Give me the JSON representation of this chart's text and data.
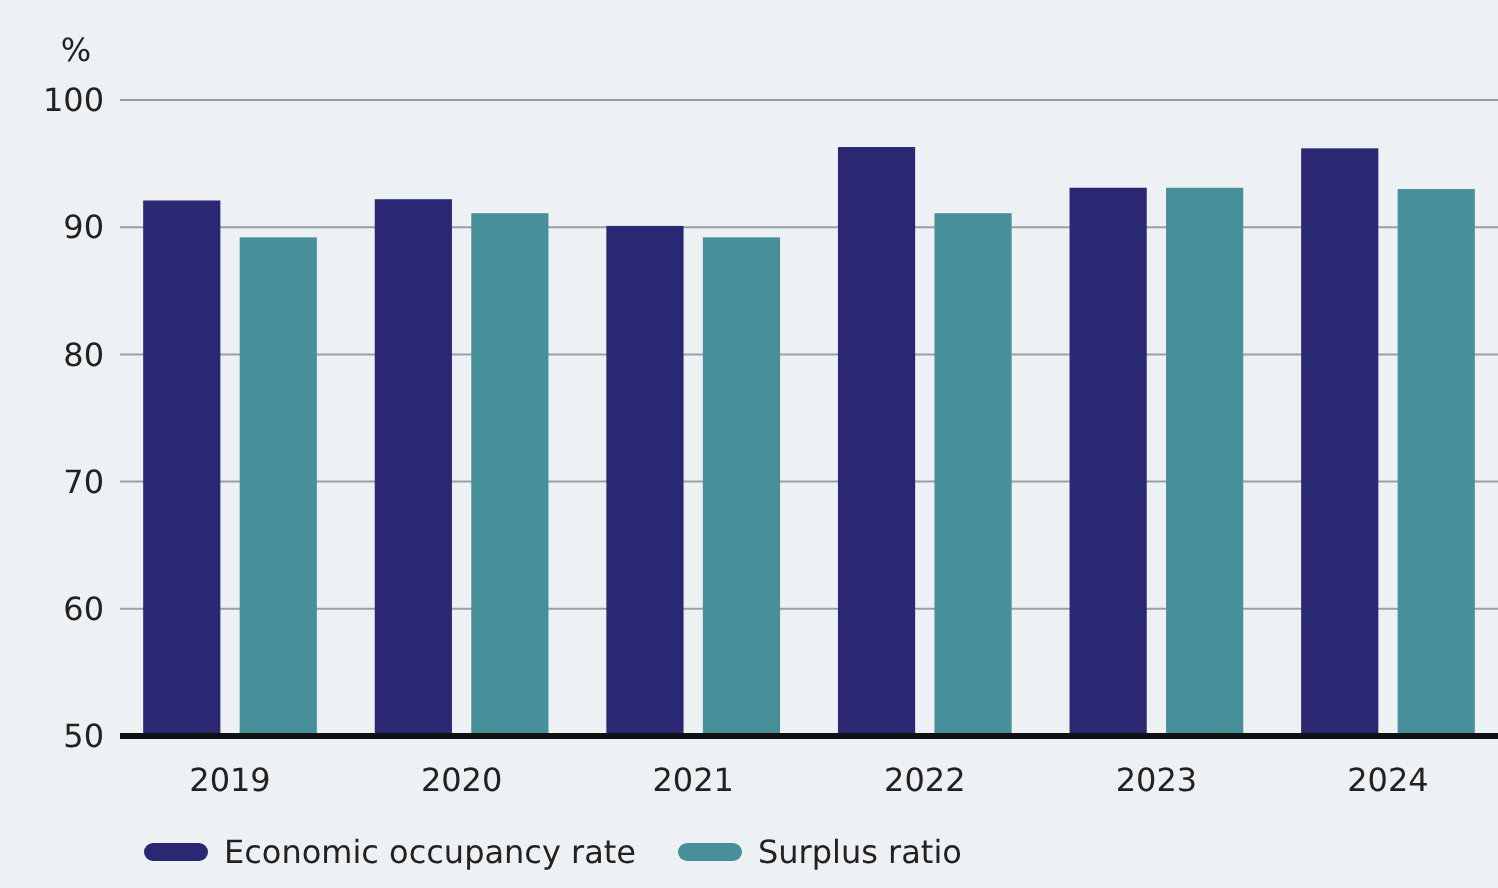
{
  "chart_data": {
    "type": "bar",
    "ylabel": "%",
    "categories": [
      "2019",
      "2020",
      "2021",
      "2022",
      "2023",
      "2024"
    ],
    "series": [
      {
        "name": "Economic occupancy rate",
        "color": "#2a2873",
        "values": [
          92.1,
          92.2,
          90.1,
          96.3,
          93.1,
          96.2
        ]
      },
      {
        "name": "Surplus ratio",
        "color": "#478f99",
        "values": [
          89.2,
          91.1,
          89.2,
          91.1,
          93.1,
          93.0
        ]
      }
    ],
    "ylim": [
      50,
      100
    ],
    "yticks": [
      50,
      60,
      70,
      80,
      90,
      100
    ],
    "grid": "y",
    "legend": "bottom"
  }
}
